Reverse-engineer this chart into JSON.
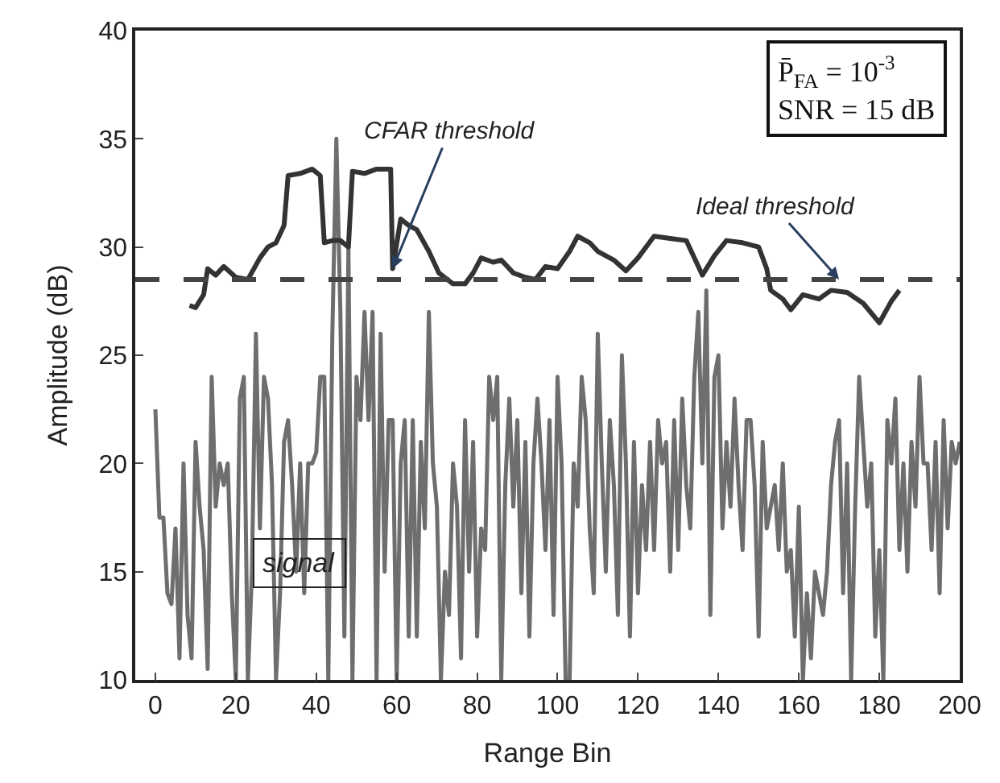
{
  "chart_data": {
    "type": "line",
    "xlabel": "Range Bin",
    "ylabel": "Amplitude (dB)",
    "xlim": [
      -5,
      200
    ],
    "ylim": [
      10,
      40
    ],
    "xticks": [
      0,
      20,
      40,
      60,
      80,
      100,
      120,
      140,
      160,
      180,
      200
    ],
    "yticks": [
      10,
      15,
      20,
      25,
      30,
      35,
      40
    ],
    "grid": false,
    "legend": false,
    "marker": "none",
    "annotations": [
      "P̄$_{FA}$ = 10$^{-3}$",
      "SNR = 15 dB"
    ],
    "ref_lines": [
      {
        "axis": "y",
        "value": 28.5,
        "label": "Ideal threshold",
        "color": "#444444",
        "line_style": "dashed"
      }
    ],
    "series": [
      {
        "name": "signal",
        "color": "#6e6e6e",
        "line_style": "solid",
        "x": [
          0,
          1,
          2,
          3,
          4,
          5,
          6,
          7,
          8,
          9,
          10,
          11,
          12,
          13,
          14,
          15,
          16,
          17,
          18,
          19,
          20,
          21,
          22,
          23,
          24,
          25,
          26,
          27,
          28,
          29,
          30,
          31,
          32,
          33,
          34,
          35,
          36,
          37,
          38,
          39,
          40,
          41,
          42,
          43,
          44,
          45,
          46,
          47,
          48,
          49,
          50,
          51,
          52,
          53,
          54,
          55,
          56,
          57,
          58,
          59,
          60,
          61,
          62,
          63,
          64,
          65,
          66,
          67,
          68,
          69,
          70,
          71,
          72,
          73,
          74,
          75,
          76,
          77,
          78,
          79,
          80,
          81,
          82,
          83,
          84,
          85,
          86,
          87,
          88,
          89,
          90,
          91,
          92,
          93,
          94,
          95,
          96,
          97,
          98,
          99,
          100,
          101,
          102,
          103,
          104,
          105,
          106,
          107,
          108,
          109,
          110,
          111,
          112,
          113,
          114,
          115,
          116,
          117,
          118,
          119,
          120,
          121,
          122,
          123,
          124,
          125,
          126,
          127,
          128,
          129,
          130,
          131,
          132,
          133,
          134,
          135,
          136,
          137,
          138,
          139,
          140,
          141,
          142,
          143,
          144,
          145,
          146,
          147,
          148,
          149,
          150,
          151,
          152,
          153,
          154,
          155,
          156,
          157,
          158,
          159,
          160,
          161,
          162,
          163,
          164,
          165,
          166,
          167,
          168,
          169,
          170,
          171,
          172,
          173,
          174,
          175,
          176,
          177,
          178,
          179,
          180,
          181,
          182,
          183,
          184,
          185,
          186,
          187,
          188,
          189,
          190,
          191,
          192,
          193,
          194,
          195,
          196,
          197,
          198,
          199,
          200
        ],
        "values": [
          22.5,
          17.5,
          17.5,
          14,
          13.5,
          17,
          11,
          20,
          13,
          11,
          21,
          18,
          16,
          10.5,
          24,
          18,
          20,
          19,
          20,
          14,
          10,
          23,
          24,
          10,
          15,
          26,
          17,
          24,
          23,
          19,
          10,
          14,
          21,
          22,
          19,
          15,
          20,
          14,
          20,
          20,
          20.5,
          24,
          24,
          10,
          26,
          35,
          27,
          12,
          30,
          10,
          24,
          22,
          27,
          22,
          27,
          10,
          26,
          15,
          22,
          22,
          10,
          20,
          22,
          12,
          22,
          12,
          21,
          17,
          27,
          20,
          18,
          10,
          15,
          13,
          20,
          18,
          11,
          22,
          15,
          21,
          12,
          17,
          16,
          24,
          22,
          24,
          10,
          19,
          23,
          18,
          22,
          14,
          21,
          12,
          20,
          23,
          20,
          16,
          22,
          13,
          24,
          20,
          10,
          10,
          20,
          18,
          24,
          22,
          17,
          14,
          26,
          20,
          15,
          22,
          19,
          13,
          25,
          20,
          12,
          21,
          14,
          19,
          16,
          21,
          16,
          22,
          20,
          21,
          15,
          22,
          16,
          23,
          19,
          17,
          24,
          27,
          20,
          28,
          13,
          24,
          25,
          17,
          21,
          18,
          23,
          19,
          16,
          22,
          22,
          19,
          12,
          21,
          17,
          18,
          19,
          16,
          20,
          15,
          16,
          12,
          18,
          10,
          14,
          11,
          15,
          14,
          13,
          15,
          19,
          21,
          22,
          14,
          20,
          10,
          18,
          24,
          21,
          18,
          20,
          12,
          16,
          10,
          22,
          20,
          23,
          16,
          20,
          15,
          21,
          18,
          24,
          20,
          20,
          16,
          21,
          14,
          22,
          17,
          21,
          20,
          21
        ]
      },
      {
        "name": "CFAR threshold",
        "color": "#333333",
        "line_style": "solid",
        "x": [
          8.5,
          10,
          12,
          13,
          15,
          17,
          20,
          23,
          26,
          28,
          30,
          32,
          33,
          36,
          39,
          41,
          42,
          44,
          46,
          48,
          49,
          52,
          55,
          58.5,
          59,
          61,
          63,
          65,
          68,
          70.5,
          74,
          77,
          79,
          81,
          84,
          86,
          89,
          92,
          94.5,
          97,
          100,
          103,
          105,
          108,
          110,
          114,
          117,
          120,
          124,
          128,
          132,
          134,
          136,
          139,
          142,
          146,
          150,
          152,
          153,
          156,
          158,
          161,
          165,
          168,
          172,
          176,
          180,
          183,
          185
        ],
        "values": [
          27.3,
          27.2,
          27.8,
          29,
          28.7,
          29.1,
          28.6,
          28.5,
          29.5,
          30,
          30.2,
          31,
          33.3,
          33.4,
          33.6,
          33.3,
          30.2,
          30.3,
          30.3,
          30,
          33.5,
          33.4,
          33.6,
          33.6,
          29,
          31.3,
          31,
          30.8,
          29.8,
          28.8,
          28.3,
          28.3,
          28.8,
          29.5,
          29.3,
          29.4,
          28.8,
          28.6,
          28.5,
          29.1,
          29,
          29.8,
          30.5,
          30.2,
          29.8,
          29.4,
          28.9,
          29.5,
          30.5,
          30.4,
          30.3,
          29.5,
          28.7,
          29.6,
          30.3,
          30.2,
          30,
          29,
          28,
          27.6,
          27.1,
          27.8,
          27.6,
          28,
          27.9,
          27.4,
          26.5,
          27.5,
          28
        ]
      }
    ]
  }
}
